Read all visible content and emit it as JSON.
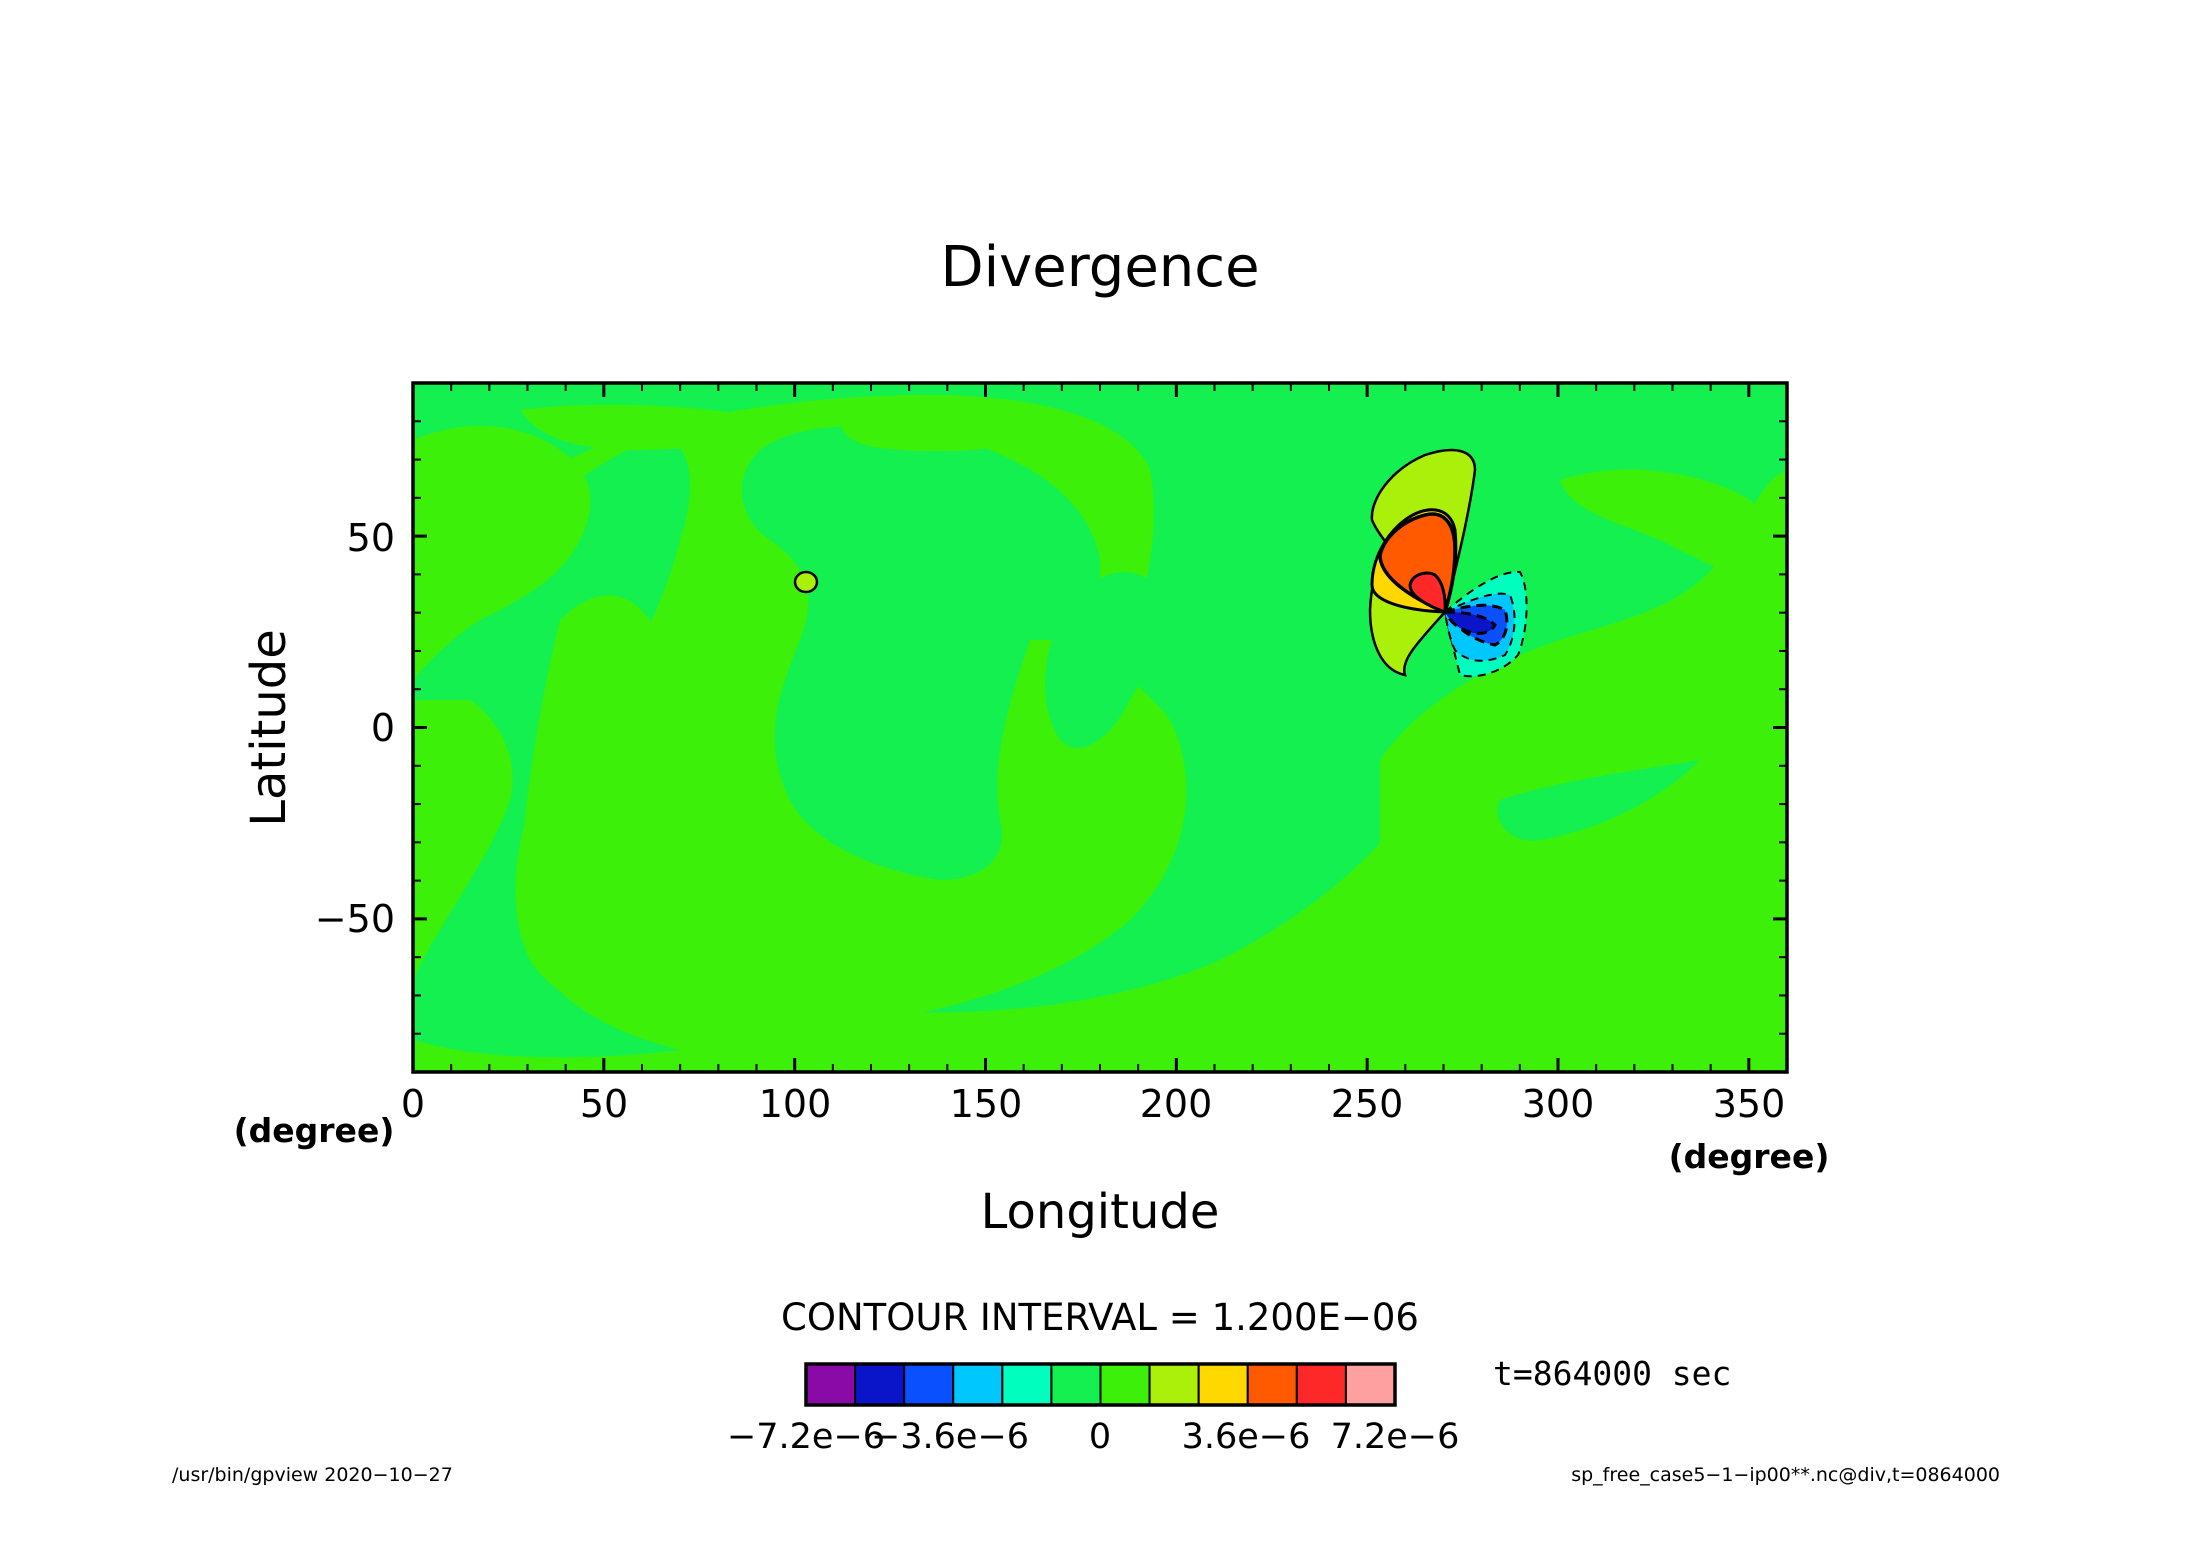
{
  "chart_data": {
    "type": "heatmap",
    "title": "Divergence",
    "xlabel": "Longitude",
    "ylabel": "Latitude",
    "x_unit": "(degree)",
    "y_unit": "(degree)",
    "xlim": [
      0,
      360
    ],
    "ylim": [
      -90,
      90
    ],
    "x_ticks": [
      "0",
      "50",
      "100",
      "150",
      "200",
      "250",
      "300",
      "350"
    ],
    "y_ticks": [
      "50",
      "0",
      "−50"
    ],
    "grid": false,
    "contour_interval_label": "CONTOUR INTERVAL = 1.200E−06",
    "time_label": "t=864000 sec",
    "colorbar": {
      "labels": [
        "−7.2e−6",
        "−3.6e−6",
        "0",
        "3.6e−6",
        "7.2e−6"
      ],
      "colors": [
        "#8a0aa8",
        "#0a14c8",
        "#0a50ff",
        "#00c8ff",
        "#00ffbe",
        "#14f050",
        "#3cf00a",
        "#aaf00a",
        "#ffd800",
        "#ff5a00",
        "#ff2828",
        "#ffa0a0"
      ]
    },
    "features": [
      {
        "name": "dipole positive lobe",
        "lon": 262,
        "lat": 33,
        "max_value": "~6e-6"
      },
      {
        "name": "dipole negative lobe",
        "lon": 280,
        "lat": 25,
        "min_value": "~-6e-6"
      },
      {
        "name": "small positive contour",
        "lon": 103,
        "lat": 38
      }
    ]
  },
  "footer": {
    "left": "/usr/bin/gpview   2020−10−27",
    "right": "sp_free_case5−1−ip00**.nc@div,t=0864000"
  }
}
